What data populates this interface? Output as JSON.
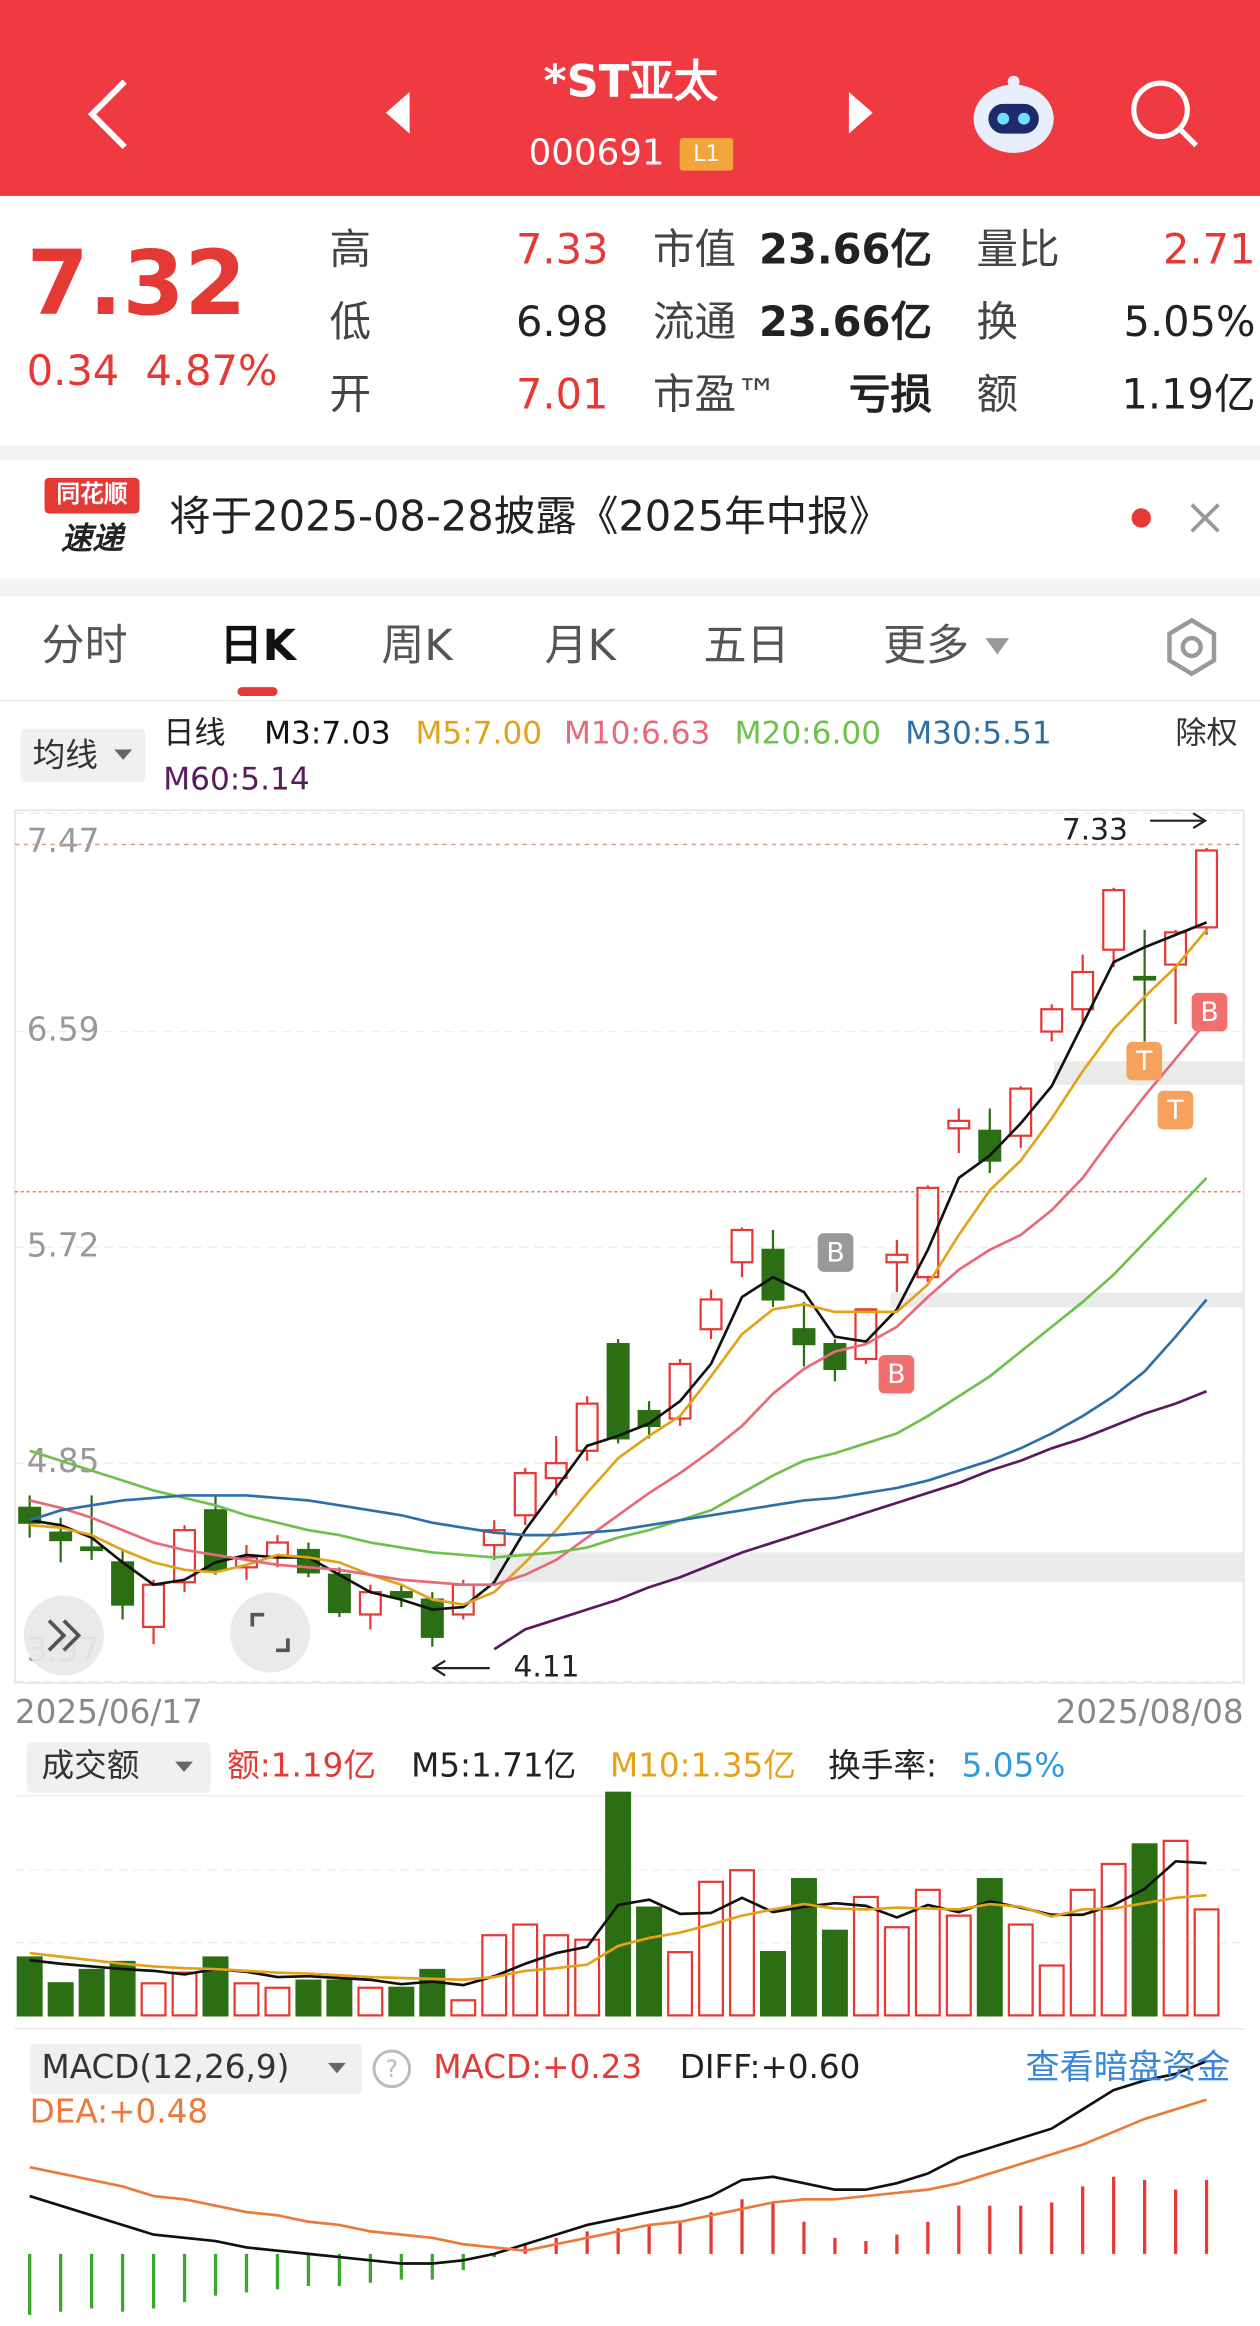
{
  "header": {
    "title": "*ST亚太",
    "code": "000691",
    "level": "L1"
  },
  "quote": {
    "price": "7.32",
    "change": "0.34",
    "change_pct": "4.87%",
    "stats": [
      [
        {
          "label": "高",
          "value": "7.33"
        },
        {
          "label": "低",
          "value": "6.98"
        },
        {
          "label": "开",
          "value": "7.01"
        }
      ],
      [
        {
          "label": "市值",
          "value": "23.66亿"
        },
        {
          "label": "流通",
          "value": "23.66亿"
        },
        {
          "label": "市盈™",
          "value": "亏损"
        }
      ],
      [
        {
          "label": "量比",
          "value": "2.71"
        },
        {
          "label": "换",
          "value": "5.05%"
        },
        {
          "label": "额",
          "value": "1.19亿"
        }
      ]
    ]
  },
  "notice": {
    "logo_top": "同花顺",
    "logo_bottom": "速递",
    "text": "将于2025-08-28披露《2025年中报》"
  },
  "tabs": [
    "分时",
    "日K",
    "周K",
    "月K",
    "五日",
    "更多"
  ],
  "kline": {
    "type": "candlestick",
    "selector": "均线",
    "period": "日线",
    "adjust": "除权",
    "up_color": "#e53935",
    "down_color": "#2b6e14",
    "categories": [
      "2025/06/17",
      null,
      null,
      null,
      null,
      null,
      null,
      null,
      null,
      null,
      null,
      null,
      null,
      null,
      null,
      null,
      null,
      null,
      null,
      null,
      null,
      null,
      null,
      null,
      null,
      null,
      null,
      null,
      null,
      null,
      null,
      null,
      null,
      null,
      null,
      null,
      null,
      null,
      "2025/08/08"
    ],
    "open": [
      4.67,
      4.57,
      4.51,
      4.45,
      4.19,
      4.37,
      4.66,
      4.43,
      4.47,
      4.5,
      4.4,
      4.24,
      4.33,
      4.3,
      4.24,
      4.52,
      4.64,
      4.79,
      4.9,
      5.33,
      5.06,
      5.03,
      5.39,
      5.66,
      5.71,
      5.39,
      5.33,
      5.27,
      5.66,
      5.6,
      6.2,
      6.19,
      6.17,
      6.59,
      6.68,
      6.92,
      6.81,
      6.86,
      7.01
    ],
    "high": [
      4.72,
      4.63,
      4.72,
      4.5,
      4.38,
      4.6,
      4.72,
      4.52,
      4.56,
      4.53,
      4.43,
      4.36,
      4.36,
      4.33,
      4.38,
      4.62,
      4.83,
      4.96,
      5.12,
      5.35,
      5.1,
      5.27,
      5.55,
      5.8,
      5.79,
      5.5,
      5.35,
      5.47,
      5.75,
      5.97,
      6.28,
      6.28,
      6.37,
      6.7,
      6.9,
      7.17,
      7.0,
      7.0,
      7.33
    ],
    "low": [
      4.55,
      4.45,
      4.46,
      4.22,
      4.12,
      4.33,
      4.4,
      4.38,
      4.43,
      4.39,
      4.23,
      4.18,
      4.27,
      4.11,
      4.22,
      4.46,
      4.6,
      4.72,
      4.86,
      4.93,
      4.95,
      5.0,
      5.35,
      5.6,
      5.48,
      5.24,
      5.18,
      5.25,
      5.54,
      5.58,
      6.1,
      6.02,
      6.12,
      6.55,
      6.62,
      6.85,
      6.55,
      6.62,
      6.98
    ],
    "close": [
      4.61,
      4.54,
      4.5,
      4.28,
      4.36,
      4.58,
      4.42,
      4.47,
      4.53,
      4.41,
      4.25,
      4.33,
      4.31,
      4.15,
      4.36,
      4.58,
      4.81,
      4.85,
      5.09,
      4.95,
      5.0,
      5.25,
      5.51,
      5.79,
      5.51,
      5.33,
      5.23,
      5.47,
      5.69,
      5.96,
      6.23,
      6.07,
      6.36,
      6.68,
      6.83,
      7.16,
      6.8,
      6.99,
      7.32
    ],
    "ylim": [
      3.97,
      7.47
    ],
    "yticks": [
      7.47,
      6.59,
      5.72,
      4.85,
      3.97
    ],
    "high_label": "7.33",
    "low_label": "4.11",
    "markers": [
      "B",
      "B",
      "T",
      "T",
      "B"
    ],
    "ma": [
      {
        "name": "M3:7.03",
        "color": "#111111",
        "values": [
          4.62,
          4.6,
          4.55,
          4.45,
          4.36,
          4.38,
          4.45,
          4.48,
          4.47,
          4.47,
          4.4,
          4.33,
          4.3,
          4.26,
          4.27,
          4.37,
          4.58,
          4.75,
          4.92,
          4.96,
          5.01,
          5.1,
          5.25,
          5.52,
          5.6,
          5.54,
          5.36,
          5.34,
          5.47,
          5.71,
          6.0,
          6.09,
          6.22,
          6.37,
          6.62,
          6.87,
          6.93,
          6.98,
          7.03
        ]
      },
      {
        "name": "M5:7.00",
        "color": "#e3a21a",
        "values": [
          4.6,
          4.59,
          4.56,
          4.5,
          4.45,
          4.42,
          4.41,
          4.44,
          4.48,
          4.47,
          4.45,
          4.4,
          4.36,
          4.3,
          4.28,
          4.33,
          4.45,
          4.58,
          4.73,
          4.87,
          4.96,
          5.04,
          5.2,
          5.37,
          5.47,
          5.49,
          5.46,
          5.46,
          5.46,
          5.57,
          5.77,
          5.95,
          6.07,
          6.24,
          6.43,
          6.6,
          6.73,
          6.85,
          7.0
        ]
      },
      {
        "name": "M10:6.63",
        "color": "#e8697a",
        "values": [
          4.7,
          4.67,
          4.63,
          4.58,
          4.53,
          4.5,
          4.48,
          4.46,
          4.44,
          4.43,
          4.42,
          4.4,
          4.38,
          4.37,
          4.36,
          4.36,
          4.4,
          4.46,
          4.55,
          4.64,
          4.73,
          4.81,
          4.9,
          5.0,
          5.13,
          5.23,
          5.3,
          5.33,
          5.4,
          5.52,
          5.63,
          5.71,
          5.77,
          5.87,
          6.0,
          6.17,
          6.33,
          6.48,
          6.63
        ]
      },
      {
        "name": "M20:6.00",
        "color": "#6cc24a",
        "values": [
          4.9,
          4.86,
          4.82,
          4.78,
          4.74,
          4.71,
          4.68,
          4.64,
          4.61,
          4.58,
          4.56,
          4.53,
          4.51,
          4.49,
          4.48,
          4.47,
          4.48,
          4.49,
          4.51,
          4.55,
          4.58,
          4.62,
          4.66,
          4.73,
          4.8,
          4.86,
          4.89,
          4.93,
          4.97,
          5.04,
          5.12,
          5.2,
          5.3,
          5.4,
          5.5,
          5.61,
          5.74,
          5.87,
          6.0
        ]
      },
      {
        "name": "M30:5.51",
        "color": "#2e6fa8",
        "values": [
          4.62,
          4.66,
          4.68,
          4.7,
          4.71,
          4.72,
          4.72,
          4.72,
          4.71,
          4.7,
          4.68,
          4.66,
          4.64,
          4.61,
          4.59,
          4.57,
          4.56,
          4.56,
          4.57,
          4.58,
          4.6,
          4.62,
          4.64,
          4.66,
          4.68,
          4.7,
          4.71,
          4.73,
          4.75,
          4.78,
          4.82,
          4.86,
          4.91,
          4.97,
          5.04,
          5.12,
          5.22,
          5.36,
          5.51
        ]
      },
      {
        "name": "M60:5.14",
        "color": "#5a1a5e",
        "values": [
          null,
          null,
          null,
          null,
          null,
          null,
          null,
          null,
          null,
          null,
          null,
          null,
          null,
          null,
          null,
          4.1,
          4.18,
          4.22,
          4.26,
          4.3,
          4.35,
          4.39,
          4.44,
          4.49,
          4.53,
          4.57,
          4.61,
          4.65,
          4.69,
          4.73,
          4.77,
          4.82,
          4.86,
          4.91,
          4.95,
          5.0,
          5.05,
          5.09,
          5.14
        ]
      }
    ]
  },
  "volume": {
    "type": "bar",
    "selector": "成交额",
    "amount_label": "额:1.19亿",
    "turnover_label": "换手率:",
    "turnover": "5.05%",
    "values": [
      0.65,
      0.36,
      0.51,
      0.6,
      0.36,
      0.48,
      0.65,
      0.36,
      0.31,
      0.39,
      0.39,
      0.31,
      0.31,
      0.51,
      0.17,
      0.9,
      1.02,
      0.9,
      0.85,
      2.5,
      1.21,
      0.71,
      1.5,
      1.63,
      0.71,
      1.53,
      0.95,
      1.33,
      0.99,
      1.41,
      1.12,
      1.53,
      1.02,
      0.56,
      1.41,
      1.7,
      1.92,
      1.96,
      1.19
    ],
    "ylim": [
      0,
      2.55
    ],
    "series": [
      {
        "name": "M5:1.71亿",
        "color": "#111111",
        "values": [
          0.62,
          0.58,
          0.55,
          0.52,
          0.5,
          0.46,
          0.52,
          0.49,
          0.43,
          0.44,
          0.42,
          0.4,
          0.35,
          0.38,
          0.34,
          0.44,
          0.58,
          0.7,
          0.77,
          1.24,
          1.3,
          1.14,
          1.15,
          1.32,
          1.16,
          1.22,
          1.26,
          1.23,
          1.1,
          1.24,
          1.16,
          1.28,
          1.21,
          1.13,
          1.13,
          1.24,
          1.42,
          1.73,
          1.71
        ]
      },
      {
        "name": "M10:1.35亿",
        "color": "#e3a21a",
        "values": [
          0.7,
          0.66,
          0.62,
          0.58,
          0.55,
          0.53,
          0.52,
          0.5,
          0.48,
          0.47,
          0.45,
          0.43,
          0.42,
          0.41,
          0.4,
          0.43,
          0.5,
          0.53,
          0.57,
          0.78,
          0.87,
          0.93,
          1.02,
          1.12,
          1.19,
          1.25,
          1.2,
          1.19,
          1.21,
          1.2,
          1.19,
          1.25,
          1.22,
          1.11,
          1.19,
          1.2,
          1.26,
          1.32,
          1.35
        ]
      }
    ]
  },
  "macd": {
    "type": "bar",
    "selector": "MACD(12,26,9)",
    "help": "?",
    "link": "查看暗盘资金",
    "ylim": [
      -0.2,
      0.65
    ],
    "histogram": {
      "name": "MACD:+0.23",
      "values": [
        -0.19,
        -0.18,
        -0.17,
        -0.18,
        -0.17,
        -0.15,
        -0.13,
        -0.12,
        -0.11,
        -0.1,
        -0.1,
        -0.09,
        -0.08,
        -0.08,
        -0.05,
        -0.01,
        0.03,
        0.05,
        0.07,
        0.08,
        0.09,
        0.1,
        0.13,
        0.17,
        0.16,
        0.1,
        0.05,
        0.04,
        0.06,
        0.1,
        0.15,
        0.15,
        0.15,
        0.16,
        0.21,
        0.24,
        0.23,
        0.2,
        0.23
      ]
    },
    "series": [
      {
        "name": "DIFF:+0.60",
        "color": "#111111",
        "values": [
          0.18,
          0.15,
          0.12,
          0.09,
          0.06,
          0.05,
          0.04,
          0.02,
          0.01,
          0.0,
          -0.01,
          -0.02,
          -0.03,
          -0.03,
          -0.02,
          0.0,
          0.03,
          0.06,
          0.09,
          0.11,
          0.13,
          0.15,
          0.18,
          0.23,
          0.24,
          0.22,
          0.2,
          0.2,
          0.22,
          0.25,
          0.3,
          0.33,
          0.36,
          0.39,
          0.45,
          0.51,
          0.54,
          0.56,
          0.6
        ]
      },
      {
        "name": "DEA:+0.48",
        "color": "#ec7a3a",
        "values": [
          0.27,
          0.25,
          0.23,
          0.21,
          0.18,
          0.17,
          0.15,
          0.13,
          0.12,
          0.1,
          0.09,
          0.07,
          0.06,
          0.05,
          0.03,
          0.02,
          0.01,
          0.03,
          0.05,
          0.07,
          0.09,
          0.1,
          0.12,
          0.14,
          0.16,
          0.17,
          0.17,
          0.18,
          0.19,
          0.2,
          0.22,
          0.25,
          0.28,
          0.31,
          0.34,
          0.38,
          0.42,
          0.45,
          0.48
        ]
      }
    ]
  }
}
